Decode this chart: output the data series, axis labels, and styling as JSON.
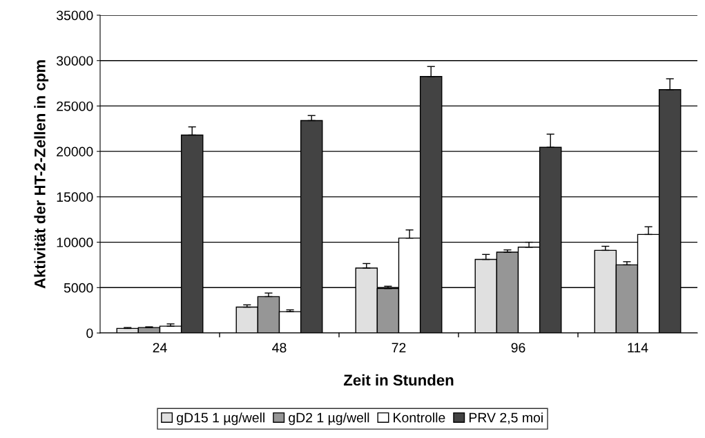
{
  "chart_data": {
    "type": "bar",
    "xlabel": "Zeit in Stunden",
    "ylabel": "Aktivität der HT-2-Zellen in cpm",
    "categories": [
      "24",
      "48",
      "72",
      "96",
      "114"
    ],
    "series": [
      {
        "name": "gD15 1 µg/well",
        "color": "#e0e0e0",
        "values": [
          500,
          2850,
          7150,
          8100,
          9100
        ],
        "errors": [
          [
            500,
            600
          ],
          [
            2850,
            3100
          ],
          [
            7150,
            7650
          ],
          [
            8100,
            8650
          ],
          [
            9100,
            9550
          ]
        ]
      },
      {
        "name": "gD2 1 µg/well",
        "color": "#969696",
        "values": [
          600,
          4000,
          4900,
          8900,
          7500
        ],
        "errors": [
          [
            600,
            680
          ],
          [
            4000,
            4400
          ],
          [
            4900,
            5150
          ],
          [
            8900,
            9150
          ],
          [
            7500,
            7850
          ]
        ]
      },
      {
        "name": "Kontrolle",
        "color": "#ffffff",
        "values": [
          750,
          2350,
          10450,
          9450,
          10850
        ],
        "errors": [
          [
            750,
            1000
          ],
          [
            2350,
            2550
          ],
          [
            10450,
            11350
          ],
          [
            9450,
            10000
          ],
          [
            10850,
            11700
          ]
        ]
      },
      {
        "name": "PRV 2,5 moi",
        "color": "#434343",
        "values": [
          21800,
          23400,
          28250,
          20450,
          26800
        ],
        "errors": [
          [
            21800,
            22700
          ],
          [
            23400,
            23950
          ],
          [
            28250,
            29350
          ],
          [
            20450,
            21900
          ],
          [
            26800,
            28000
          ]
        ]
      }
    ],
    "ylim": [
      0,
      35000
    ],
    "yticks": [
      0,
      5000,
      10000,
      15000,
      20000,
      25000,
      30000,
      35000
    ],
    "grid": "y",
    "legend": "bottom"
  }
}
